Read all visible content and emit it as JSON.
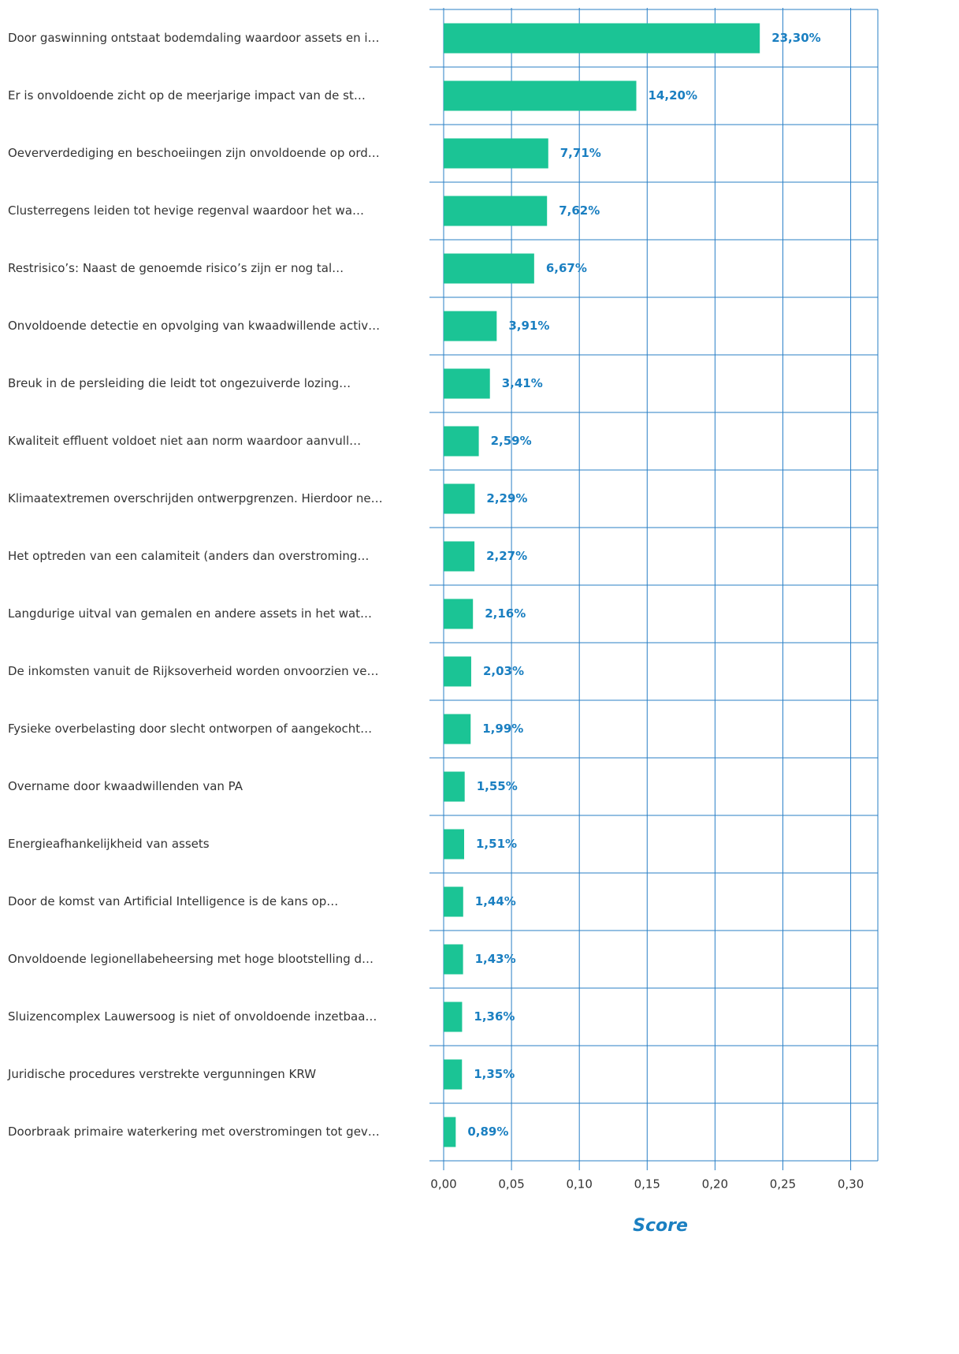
{
  "chart_data": {
    "type": "barh",
    "categories": [
      "Door gaswinning ontstaat bodemdaling waardoor assets en i…",
      "Er is onvoldoende zicht op de meerjarige impact van de st…",
      "Oeververdediging en beschoeiingen zijn onvoldoende op ord…",
      "Clusterregens leiden tot hevige regenval waardoor het wa…",
      "Restrisico’s: Naast de genoemde risico’s zijn er nog tal…",
      "Onvoldoende detectie en opvolging van kwaadwillende activ…",
      "Breuk in de persleiding die leidt tot ongezuiverde lozing…",
      "Kwaliteit effluent voldoet niet aan norm waardoor aanvull…",
      "Klimaatextremen overschrijden ontwerpgrenzen. Hierdoor ne…",
      "Het optreden van een calamiteit (anders dan overstroming…",
      "Langdurige uitval van gemalen en andere assets in het wat…",
      "De inkomsten vanuit de Rijksoverheid worden onvoorzien ve…",
      "Fysieke overbelasting door slecht ontworpen of aangekocht…",
      "Overname door kwaadwillenden van PA",
      "Energieafhankelijkheid van assets",
      "Door de komst van Artificial Intelligence is de kans op…",
      "Onvoldoende legionellabeheersing met hoge blootstelling d…",
      "Sluizencomplex Lauwersoog is niet of onvoldoende inzetbaa…",
      "Juridische procedures verstrekte vergunningen KRW",
      "Doorbraak primaire waterkering met overstromingen tot gev…"
    ],
    "values": [
      0.233,
      0.142,
      0.0771,
      0.0762,
      0.0667,
      0.0391,
      0.0341,
      0.0259,
      0.0229,
      0.0227,
      0.0216,
      0.0203,
      0.0199,
      0.0155,
      0.0151,
      0.0144,
      0.0143,
      0.0136,
      0.0135,
      0.0089
    ],
    "value_labels": [
      "23,30%",
      "14,20%",
      "7,71%",
      "7,62%",
      "6,67%",
      "3,91%",
      "3,41%",
      "2,59%",
      "2,29%",
      "2,27%",
      "2,16%",
      "2,03%",
      "1,99%",
      "1,55%",
      "1,51%",
      "1,44%",
      "1,43%",
      "1,36%",
      "1,35%",
      "0,89%"
    ],
    "color": "#1bc495",
    "xlabel": "Score",
    "xlim": [
      0,
      0.32
    ],
    "xticks": [
      {
        "value": 0,
        "label": "0,00"
      },
      {
        "value": 0.05,
        "label": "0,05"
      },
      {
        "value": 0.1,
        "label": "0,10"
      },
      {
        "value": 0.15,
        "label": "0,15"
      },
      {
        "value": 0.2,
        "label": "0,20"
      },
      {
        "value": 0.25,
        "label": "0,25"
      },
      {
        "value": 0.3,
        "label": "0,30"
      }
    ],
    "grid": true
  }
}
